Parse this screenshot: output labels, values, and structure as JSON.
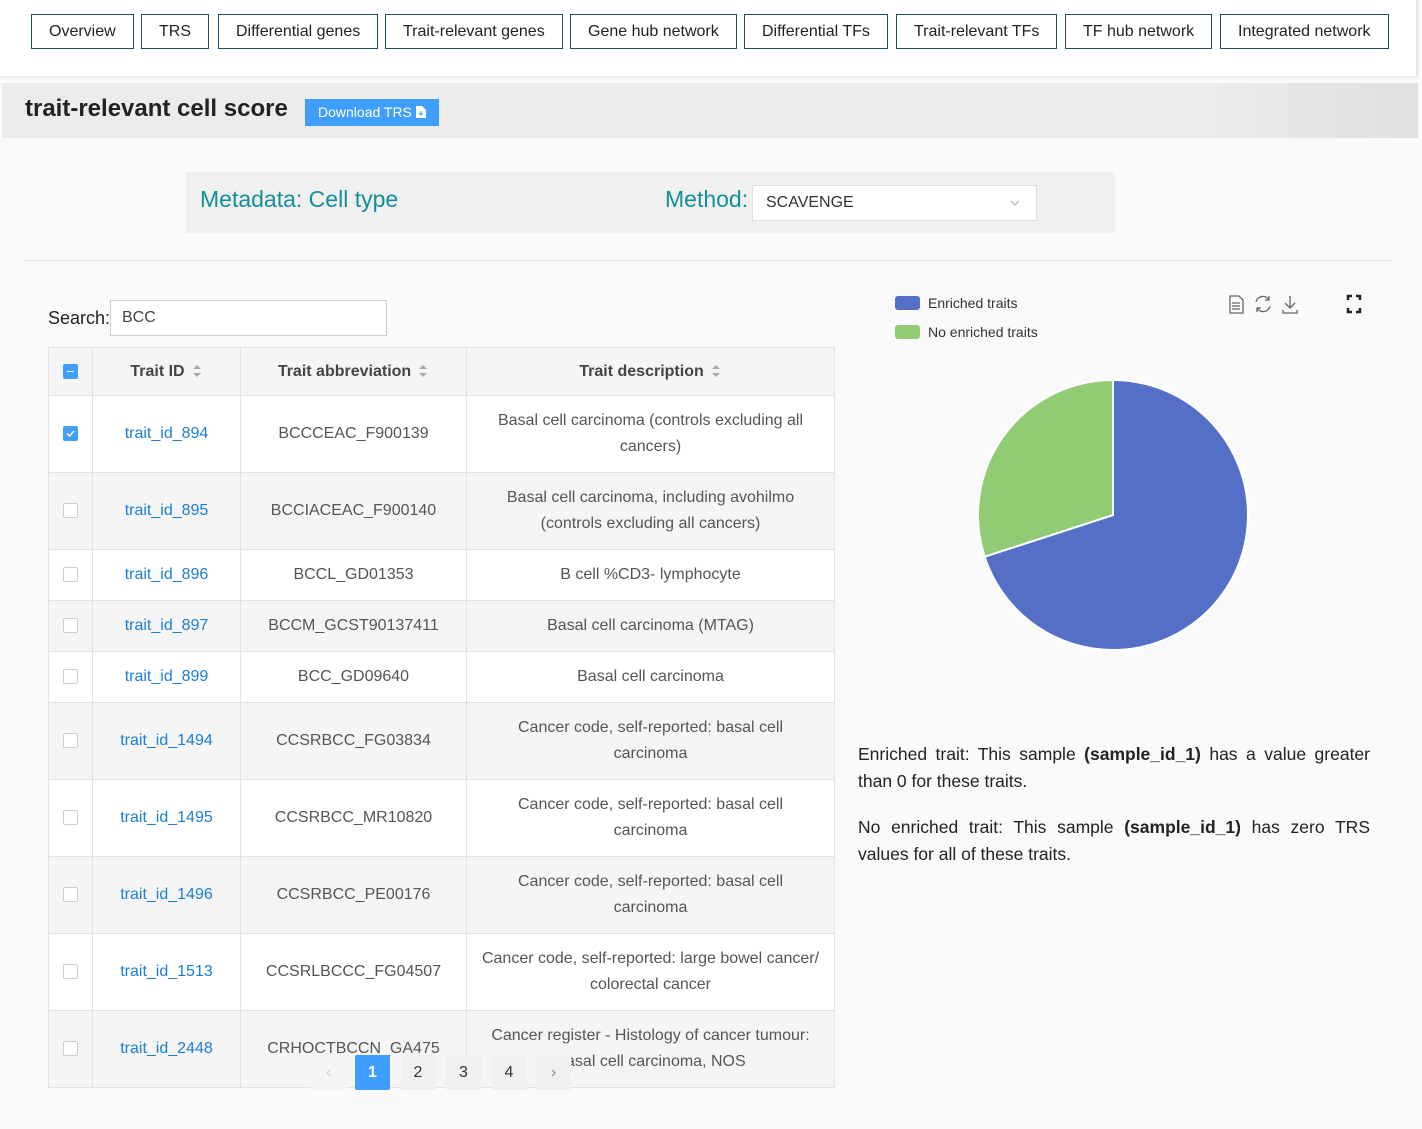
{
  "nav": {
    "tabs": [
      "Overview",
      "TRS",
      "Differential genes",
      "Trait-relevant genes",
      "Gene hub network",
      "Differential TFs",
      "Trait-relevant TFs",
      "TF hub network",
      "Integrated network"
    ]
  },
  "header": {
    "title": "trait-relevant cell score",
    "download_button": "Download TRS"
  },
  "filters": {
    "metadata_label": "Metadata: Cell type",
    "method_label": "Method:",
    "method_value": "SCAVENGE"
  },
  "search": {
    "label": "Search:",
    "value": "BCC"
  },
  "table": {
    "columns": [
      "Trait ID",
      "Trait abbreviation",
      "Trait description"
    ],
    "rows": [
      [
        "trait_id_894",
        "BCCCEAC_F900139",
        "Basal cell carcinoma (controls excluding all cancers)"
      ],
      [
        "trait_id_895",
        "BCCIACEAC_F900140",
        "Basal cell carcinoma, including avohilmo (controls excluding all cancers)"
      ],
      [
        "trait_id_896",
        "BCCL_GD01353",
        "B cell %CD3- lymphocyte"
      ],
      [
        "trait_id_897",
        "BCCM_GCST90137411",
        "Basal cell carcinoma (MTAG)"
      ],
      [
        "trait_id_899",
        "BCC_GD09640",
        "Basal cell carcinoma"
      ],
      [
        "trait_id_1494",
        "CCSRBCC_FG03834",
        "Cancer code, self-reported: basal cell carcinoma"
      ],
      [
        "trait_id_1495",
        "CCSRBCC_MR10820",
        "Cancer code, self-reported: basal cell carcinoma"
      ],
      [
        "trait_id_1496",
        "CCSRBCC_PE00176",
        "Cancer code, self-reported: basal cell carcinoma"
      ],
      [
        "trait_id_1513",
        "CCSRLBCCC_FG04507",
        "Cancer code, self-reported: large bowel cancer/ colorectal cancer"
      ],
      [
        "trait_id_2448",
        "CRHOCTBCCN_GA475",
        "Cancer register - Histology of cancer tumour: Basal cell carcinoma, NOS"
      ]
    ]
  },
  "pagination": {
    "pages": [
      "1",
      "2",
      "3",
      "4"
    ]
  },
  "chart_data": {
    "type": "pie",
    "series": [
      {
        "name": "Enriched traits",
        "color": "#5470c6",
        "values": [
          70
        ]
      },
      {
        "name": "No enriched traits",
        "color": "#91cc75",
        "values": [
          30
        ]
      }
    ]
  },
  "notes": [
    [
      "Enriched trait: This sample ",
      "(sample_id_1)",
      " has a value greater than 0 for these traits."
    ],
    [
      "No enriched trait: This sample ",
      "(sample_id_1)",
      " has zero TRS values for all of these traits."
    ]
  ]
}
